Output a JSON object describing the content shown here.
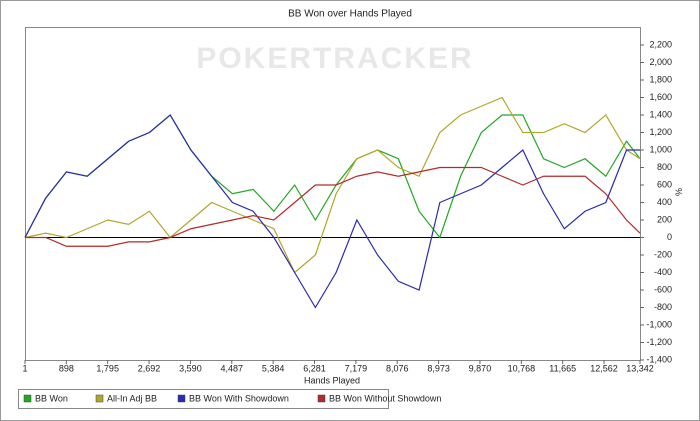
{
  "chart_data": {
    "type": "line",
    "title": "BB Won over Hands Played",
    "x_label": "Hands Played",
    "y_label": "%",
    "watermark": "POKERTRACKER",
    "x": [
      1,
      450,
      900,
      1350,
      1800,
      2250,
      2700,
      3150,
      3600,
      4050,
      4500,
      4950,
      5400,
      5850,
      6300,
      6750,
      7200,
      7650,
      8100,
      8550,
      9000,
      9450,
      9900,
      10350,
      10800,
      11250,
      11700,
      12150,
      12600,
      13050,
      13342
    ],
    "series": [
      {
        "name": "BB Won",
        "color": "#22a822",
        "values": [
          0,
          450,
          750,
          700,
          900,
          1100,
          1200,
          1400,
          1000,
          700,
          500,
          550,
          300,
          600,
          200,
          600,
          900,
          1000,
          900,
          300,
          0,
          700,
          1200,
          1400,
          1400,
          900,
          800,
          900,
          700,
          1100,
          900
        ]
      },
      {
        "name": "All-In Adj BB",
        "color": "#b3a62a",
        "values": [
          0,
          50,
          0,
          100,
          200,
          150,
          300,
          0,
          200,
          400,
          300,
          200,
          100,
          -400,
          -200,
          500,
          900,
          1000,
          800,
          700,
          1200,
          1400,
          1500,
          1600,
          1200,
          1200,
          1300,
          1200,
          1400,
          1000,
          900
        ]
      },
      {
        "name": "BB Won With Showdown",
        "color": "#2a2ab3",
        "values": [
          0,
          450,
          750,
          700,
          900,
          1100,
          1200,
          1400,
          1000,
          700,
          400,
          300,
          0,
          -400,
          -800,
          -400,
          200,
          -200,
          -500,
          -600,
          400,
          500,
          600,
          800,
          1000,
          500,
          100,
          300,
          400,
          1000,
          1000
        ]
      },
      {
        "name": "BB Won Without Showdown",
        "color": "#b32a2a",
        "values": [
          0,
          0,
          -100,
          -100,
          -100,
          -50,
          -50,
          0,
          100,
          150,
          200,
          250,
          200,
          400,
          600,
          600,
          700,
          750,
          700,
          750,
          800,
          800,
          800,
          700,
          600,
          700,
          700,
          700,
          500,
          200,
          50
        ]
      }
    ],
    "xlim": [
      1,
      13342
    ],
    "xticks": [
      1,
      898,
      {
        "value": 1795,
        "label": "1,795"
      },
      {
        "value": 2692,
        "label": "2,692"
      },
      {
        "value": 3590,
        "label": "3,590"
      },
      {
        "value": 4487,
        "label": "4,487"
      },
      {
        "value": 5384,
        "label": "5,384"
      },
      {
        "value": 6281,
        "label": "6,281"
      },
      {
        "value": 7179,
        "label": "7,179"
      },
      {
        "value": 8076,
        "label": "8,076"
      },
      {
        "value": 8973,
        "label": "8,973"
      },
      {
        "value": 9870,
        "label": "9,870"
      },
      {
        "value": 10768,
        "label": "10,768"
      },
      {
        "value": 11665,
        "label": "11,665"
      },
      {
        "value": 12562,
        "label": "12,562"
      },
      {
        "value": 13342,
        "label": "13,342"
      }
    ],
    "ylim": [
      -1400,
      2200
    ],
    "yticks": [
      {
        "value": 2200,
        "label": "2,200"
      },
      {
        "value": 2000,
        "label": "2,000"
      },
      {
        "value": 1800,
        "label": "1,800"
      },
      {
        "value": 1600,
        "label": "1,600"
      },
      {
        "value": 1400,
        "label": "1,400"
      },
      {
        "value": 1200,
        "label": "1,200"
      },
      {
        "value": 1000,
        "label": "1,000"
      },
      800,
      600,
      400,
      200,
      0,
      -200,
      -400,
      -600,
      -800,
      {
        "value": -1000,
        "label": "-1,000"
      },
      {
        "value": -1200,
        "label": "-1,200"
      },
      {
        "value": -1400,
        "label": "-1,400"
      }
    ],
    "grid": false
  }
}
